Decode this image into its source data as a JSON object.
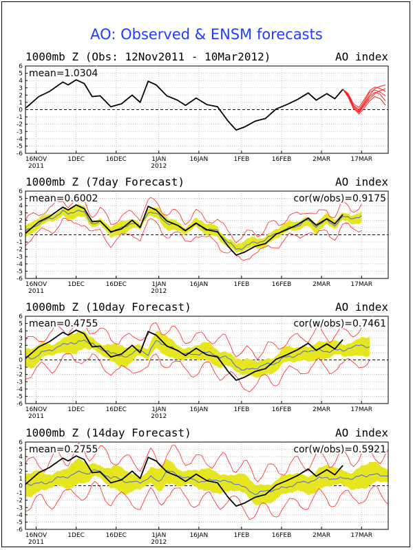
{
  "title": "AO: Observed & ENSM forecasts",
  "colors": {
    "observed": "#000000",
    "ensemble_members": "#ff2020",
    "ensemble_mean": "#4a6ad0",
    "spread_band": "#e6e620",
    "title": "#1f3cff"
  },
  "chart_data": [
    {
      "type": "line",
      "title": "1000mb Z (Obs: 12Nov2011 - 10Mar2012)",
      "right_label": "AO index",
      "stat_mean": "mean=1.0304",
      "stat_cor": "",
      "ylim": [
        -6,
        6
      ],
      "yticks": [
        "6",
        "5",
        "4",
        "3",
        "2",
        "1",
        "0",
        "-1",
        "-2",
        "-3",
        "-4",
        "-5",
        "-6"
      ],
      "x_tick_labels": [
        [
          "16NOV",
          "2011"
        ],
        [
          "1DEC",
          ""
        ],
        [
          "16DEC",
          ""
        ],
        [
          "1JAN",
          "2012"
        ],
        [
          "16JAN",
          ""
        ],
        [
          "1FEB",
          ""
        ],
        [
          "16FEB",
          ""
        ],
        [
          "2MAR",
          ""
        ],
        [
          "17MAR",
          ""
        ]
      ],
      "x_tick_days": [
        4,
        19,
        34,
        50,
        65,
        81,
        96,
        111,
        126
      ],
      "xlim": [
        0,
        136
      ],
      "grid": true,
      "series": [
        {
          "role": "observed",
          "x": [
            0,
            5,
            9,
            14,
            16,
            19,
            22,
            25,
            28,
            32,
            36,
            40,
            43,
            46,
            49,
            53,
            57,
            60,
            64,
            68,
            72,
            76,
            79,
            82,
            86,
            90,
            94,
            98,
            102,
            106,
            109,
            113,
            116,
            119
          ],
          "values": [
            0.2,
            1.8,
            2.5,
            3.8,
            3.4,
            4.1,
            3.6,
            1.8,
            1.9,
            0.4,
            0.8,
            2.0,
            1.0,
            3.9,
            3.4,
            1.9,
            1.3,
            0.6,
            1.6,
            0.7,
            0.4,
            -1.6,
            -2.8,
            -2.4,
            -1.6,
            -1.2,
            0.1,
            0.7,
            1.4,
            2.3,
            1.3,
            2.2,
            1.5,
            2.8
          ]
        },
        {
          "role": "ensemble_members",
          "x": [
            119,
            121,
            123,
            125,
            127,
            129,
            131,
            133,
            135
          ],
          "values": [
            [
              2.8,
              2.0,
              0.5,
              -0.2,
              0.9,
              2.0,
              2.9,
              3.2,
              3.4
            ],
            [
              2.8,
              1.8,
              0.3,
              -0.4,
              0.5,
              1.5,
              2.2,
              2.6,
              2.9
            ],
            [
              2.8,
              2.1,
              0.6,
              0.0,
              1.1,
              2.4,
              2.7,
              2.4,
              1.9
            ],
            [
              2.8,
              1.9,
              0.2,
              -0.6,
              0.2,
              1.2,
              1.8,
              1.5,
              0.6
            ],
            [
              2.8,
              2.2,
              0.8,
              0.3,
              1.4,
              2.6,
              3.1,
              2.9,
              2.5
            ],
            [
              2.8,
              1.7,
              0.1,
              -0.3,
              0.7,
              1.8,
              2.4,
              2.1,
              1.2
            ]
          ]
        }
      ],
      "fcst_end": 136
    },
    {
      "type": "line",
      "title": "1000mb Z (7day Forecast)",
      "right_label": "AO index",
      "stat_mean": "mean=0.6002",
      "stat_cor": "cor(w/obs)=0.9175",
      "ylim": [
        -6,
        6
      ],
      "yticks": [
        "6",
        "5",
        "4",
        "3",
        "2",
        "1",
        "0",
        "-1",
        "-2",
        "-3",
        "-4",
        "-5",
        "-6"
      ],
      "x_tick_labels": [
        [
          "16NOV",
          "2011"
        ],
        [
          "1DEC",
          ""
        ],
        [
          "16DEC",
          ""
        ],
        [
          "1JAN",
          "2012"
        ],
        [
          "16JAN",
          ""
        ],
        [
          "1FEB",
          ""
        ],
        [
          "16FEB",
          ""
        ],
        [
          "2MAR",
          ""
        ],
        [
          "17MAR",
          ""
        ]
      ],
      "x_tick_days": [
        4,
        19,
        34,
        50,
        65,
        81,
        96,
        111,
        126
      ],
      "xlim": [
        0,
        136
      ],
      "grid": true,
      "fcst_end": 126,
      "band_spread": 0.8,
      "member_spread": 1.7,
      "mean_shift": 0,
      "mean_scale": 0.78
    },
    {
      "type": "line",
      "title": "1000mb Z (10day Forecast)",
      "right_label": "AO index",
      "stat_mean": "mean=0.4755",
      "stat_cor": "cor(w/obs)=0.7461",
      "ylim": [
        -6,
        6
      ],
      "yticks": [
        "6",
        "5",
        "4",
        "3",
        "2",
        "1",
        "0",
        "-1",
        "-2",
        "-3",
        "-4",
        "-5",
        "-6"
      ],
      "x_tick_labels": [
        [
          "16NOV",
          "2011"
        ],
        [
          "1DEC",
          ""
        ],
        [
          "16DEC",
          ""
        ],
        [
          "1JAN",
          "2012"
        ],
        [
          "16JAN",
          ""
        ],
        [
          "1FEB",
          ""
        ],
        [
          "16FEB",
          ""
        ],
        [
          "2MAR",
          ""
        ],
        [
          "17MAR",
          ""
        ]
      ],
      "x_tick_days": [
        4,
        19,
        34,
        50,
        65,
        81,
        96,
        111,
        126
      ],
      "xlim": [
        0,
        136
      ],
      "grid": true,
      "fcst_end": 129,
      "band_spread": 1.3,
      "member_spread": 2.6,
      "mean_shift": 3,
      "mean_scale": 0.6
    },
    {
      "type": "line",
      "title": "1000mb Z (14day Forecast)",
      "right_label": "AO index",
      "stat_mean": "mean=0.2755",
      "stat_cor": "cor(w/obs)=0.5921",
      "ylim": [
        -6,
        6
      ],
      "yticks": [
        "6",
        "5",
        "4",
        "3",
        "2",
        "1",
        "0",
        "-1",
        "-2",
        "-3",
        "-4",
        "-5",
        "-6"
      ],
      "x_tick_labels": [
        [
          "16NOV",
          "2011"
        ],
        [
          "1DEC",
          ""
        ],
        [
          "16DEC",
          ""
        ],
        [
          "1JAN",
          "2012"
        ],
        [
          "16JAN",
          ""
        ],
        [
          "1FEB",
          ""
        ],
        [
          "16FEB",
          ""
        ],
        [
          "2MAR",
          ""
        ],
        [
          "17MAR",
          ""
        ]
      ],
      "x_tick_days": [
        4,
        19,
        34,
        50,
        65,
        81,
        96,
        111,
        126
      ],
      "xlim": [
        0,
        136
      ],
      "grid": true,
      "fcst_end": 136,
      "band_spread": 1.6,
      "member_spread": 3.2,
      "mean_shift": 7,
      "mean_scale": 0.45
    }
  ]
}
